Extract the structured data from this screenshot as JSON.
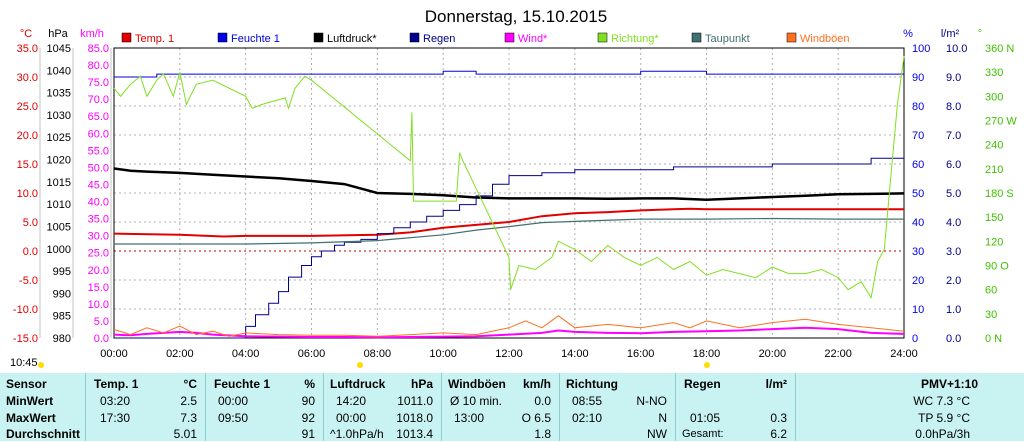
{
  "chart_data": {
    "type": "line",
    "title": "Donnerstag, 15.10.2015",
    "x_ticks": [
      "00:00",
      "02:00",
      "04:00",
      "06:00",
      "08:00",
      "10:00",
      "12:00",
      "14:00",
      "16:00",
      "18:00",
      "20:00",
      "22:00",
      "24:00"
    ],
    "x_range_hours": [
      0,
      24
    ],
    "grid": true,
    "legend": [
      {
        "name": "Temp. 1",
        "color": "#e00000"
      },
      {
        "name": "Feuchte 1",
        "color": "#0000e0"
      },
      {
        "name": "Luftdruck*",
        "color": "#000000"
      },
      {
        "name": "Regen",
        "color": "#00008a"
      },
      {
        "name": "Wind*",
        "color": "#ff00ff"
      },
      {
        "name": "Richtung*",
        "color": "#80e020"
      },
      {
        "name": "Taupunkt",
        "color": "#407070"
      },
      {
        "name": "Windböen",
        "color": "#ff7020"
      }
    ],
    "axes": {
      "temp": {
        "unit": "°C",
        "color": "#e00000",
        "min": -15,
        "max": 35,
        "ticks": [
          "35.0",
          "30.0",
          "25.0",
          "20.0",
          "15.0",
          "10.0",
          "5.0",
          "0.0",
          "-5.0",
          "-10.0",
          "-15.0"
        ]
      },
      "pressure": {
        "unit": "hPa",
        "color": "#000000",
        "min": 980,
        "max": 1045,
        "ticks": [
          "1045",
          "1040",
          "1035",
          "1030",
          "1025",
          "1020",
          "1015",
          "1010",
          "1005",
          "1000",
          "995",
          "990",
          "985",
          "980"
        ]
      },
      "wind": {
        "unit": "km/h",
        "color": "#ff00ff",
        "min": 0,
        "max": 85,
        "ticks": [
          "85.0",
          "80.0",
          "75.0",
          "70.0",
          "65.0",
          "60.0",
          "55.0",
          "50.0",
          "45.0",
          "40.0",
          "35.0",
          "30.0",
          "25.0",
          "20.0",
          "15.0",
          "10.0",
          "5.0",
          "0.0"
        ]
      },
      "humidity": {
        "unit": "%",
        "color": "#0000e0",
        "min": 0,
        "max": 100,
        "ticks": [
          "100",
          "90",
          "80",
          "70",
          "60",
          "50",
          "40",
          "30",
          "20",
          "10",
          "0"
        ]
      },
      "rain": {
        "unit": "l/m²",
        "color": "#00008a",
        "min": 0,
        "max": 10,
        "ticks": [
          "10.0",
          "9.0",
          "8.0",
          "7.0",
          "6.0",
          "5.0",
          "4.0",
          "3.0",
          "2.0",
          "1.0",
          "0.0"
        ]
      },
      "direction": {
        "unit": "°",
        "color": "#40c000",
        "min": 0,
        "max": 360,
        "ticks": [
          "360 N",
          "330",
          "300",
          "270 W",
          "240",
          "210",
          "180 S",
          "150",
          "120",
          "90 O",
          "60",
          "30",
          "0 N"
        ]
      }
    },
    "series": [
      {
        "name": "Temp. 1",
        "axis": "temp",
        "x": [
          0,
          2,
          3.33,
          4,
          6,
          8,
          9,
          10,
          11,
          12,
          13,
          14,
          15,
          16,
          17,
          17.5,
          18,
          20,
          22,
          24
        ],
        "y": [
          3.0,
          2.8,
          2.5,
          2.6,
          2.6,
          2.8,
          3.2,
          4.0,
          4.5,
          5.0,
          6.0,
          6.5,
          6.7,
          7.0,
          7.2,
          7.3,
          7.2,
          7.2,
          7.2,
          7.2
        ]
      },
      {
        "name": "Feuchte 1",
        "axis": "humidity",
        "x": [
          0,
          1.2,
          1.3,
          4,
          4.5,
          6,
          8,
          9,
          10,
          11,
          12,
          14,
          16,
          18,
          20,
          22,
          23,
          24
        ],
        "y": [
          90,
          90,
          91,
          91,
          91,
          91,
          91,
          91,
          92,
          91,
          91,
          91,
          92,
          91,
          91,
          91,
          91,
          91
        ]
      },
      {
        "name": "Luftdruck*",
        "axis": "pressure",
        "x": [
          0,
          0.5,
          1,
          2,
          3,
          4,
          5,
          6,
          7,
          8,
          9,
          10,
          11,
          12,
          13,
          14,
          15,
          16,
          17,
          18,
          19,
          20,
          21,
          22,
          23,
          24
        ],
        "y": [
          1018,
          1017.5,
          1017.3,
          1017,
          1016.6,
          1016.2,
          1015.8,
          1015.2,
          1014.5,
          1012.5,
          1012.3,
          1012,
          1011.5,
          1011.3,
          1011.3,
          1011.3,
          1011.2,
          1011.3,
          1011.3,
          1011.0,
          1011.3,
          1011.6,
          1011.9,
          1012.2,
          1012.3,
          1012.4
        ]
      },
      {
        "name": "Regen",
        "axis": "rain",
        "x": [
          0,
          3.6,
          4.0,
          4.3,
          4.7,
          5.0,
          5.3,
          5.7,
          6.0,
          6.3,
          6.7,
          7.0,
          7.5,
          8.0,
          8.5,
          9.0,
          9.5,
          10.0,
          10.5,
          11.0,
          11.5,
          12.0,
          13.0,
          14.0,
          15.0,
          16.0,
          17.0,
          18.0,
          19.0,
          20.0,
          21.0,
          22.0,
          22.5,
          23.0,
          24.0
        ],
        "y": [
          0,
          0,
          0.4,
          0.8,
          1.2,
          1.6,
          2.1,
          2.5,
          2.8,
          3.0,
          3.2,
          3.3,
          3.4,
          3.6,
          3.8,
          4.0,
          4.2,
          4.4,
          4.6,
          4.9,
          5.3,
          5.6,
          5.7,
          5.8,
          5.8,
          5.8,
          5.9,
          5.9,
          5.9,
          6.0,
          6.0,
          6.0,
          6.0,
          6.2,
          6.2
        ]
      },
      {
        "name": "Taupunkt",
        "axis": "temp",
        "x": [
          0,
          2,
          4,
          6,
          8,
          10,
          11,
          12,
          13,
          14,
          16,
          18,
          20,
          22,
          24
        ],
        "y": [
          1.2,
          1.2,
          1.2,
          1.4,
          1.8,
          2.8,
          3.6,
          4.2,
          4.9,
          5.1,
          5.5,
          5.5,
          5.6,
          5.5,
          5.5
        ]
      },
      {
        "name": "Wind*",
        "axis": "wind",
        "x": [
          0,
          0.5,
          1,
          1.5,
          2,
          2.5,
          3,
          4,
          5,
          6,
          7,
          8,
          9,
          10,
          11,
          12,
          13,
          13.5,
          14,
          15,
          16,
          17,
          18,
          19,
          20,
          21,
          22,
          23,
          24
        ],
        "y": [
          1.0,
          0.8,
          1.2,
          1.5,
          1.8,
          1.5,
          1.0,
          0.5,
          0.4,
          0.3,
          0.3,
          0.2,
          0.3,
          0.4,
          0.5,
          1.0,
          1.5,
          2.2,
          1.8,
          1.5,
          1.4,
          1.8,
          2.0,
          2.2,
          2.6,
          3.0,
          2.6,
          1.5,
          1.2
        ]
      },
      {
        "name": "Windböen",
        "axis": "wind",
        "x": [
          0,
          0.5,
          1,
          1.5,
          2,
          2.5,
          3,
          3.5,
          4,
          5,
          6,
          7,
          8,
          9,
          10,
          11,
          12,
          12.5,
          13,
          13.5,
          14,
          15,
          16,
          17,
          17.5,
          18,
          19,
          20,
          21,
          22,
          23,
          24
        ],
        "y": [
          2.5,
          1.0,
          3.0,
          1.5,
          3.5,
          1.0,
          2.0,
          0.5,
          1.5,
          1.0,
          0.8,
          0.8,
          0.5,
          1.0,
          1.5,
          1.0,
          3.0,
          5.0,
          3.0,
          6.5,
          3.0,
          4.0,
          3.0,
          4.5,
          3.0,
          5.0,
          3.0,
          4.5,
          5.5,
          4.0,
          3.0,
          2.0
        ]
      },
      {
        "name": "Richtung*",
        "axis": "direction",
        "x": [
          0,
          0.2,
          0.5,
          0.8,
          1.0,
          1.3,
          1.5,
          1.8,
          2.0,
          2.2,
          2.5,
          3.0,
          4.0,
          4.2,
          4.5,
          5.2,
          5.3,
          5.5,
          5.8,
          6.0,
          9.0,
          9.05,
          9.1,
          10.4,
          10.5,
          10.6,
          12.0,
          12.05,
          12.3,
          12.8,
          13.3,
          13.5,
          14.0,
          14.5,
          15.0,
          15.5,
          16.0,
          16.5,
          17.0,
          17.5,
          18.0,
          18.5,
          19.0,
          19.5,
          20.0,
          20.5,
          21.0,
          21.5,
          22.0,
          22.3,
          22.7,
          23.0,
          23.2,
          23.4,
          23.6,
          23.8,
          24.0
        ],
        "y": [
          310,
          300,
          315,
          325,
          300,
          320,
          328,
          300,
          330,
          290,
          315,
          320,
          300,
          285,
          290,
          298,
          285,
          310,
          325,
          320,
          220,
          280,
          170,
          170,
          230,
          220,
          100,
          60,
          90,
          85,
          100,
          120,
          110,
          95,
          115,
          100,
          90,
          100,
          85,
          95,
          78,
          85,
          80,
          75,
          88,
          80,
          80,
          85,
          75,
          60,
          70,
          50,
          95,
          110,
          200,
          290,
          350
        ]
      }
    ]
  },
  "header_labels": {
    "hpa": "hPa",
    "kmh": "km/h",
    "pct": "%",
    "lm2": "l/m²",
    "deg": "°",
    "degc": "°C"
  },
  "time_now": "10:45",
  "summary_table": {
    "sensor_col": {
      "header": "Sensor",
      "rows": [
        "MinWert",
        "MaxWert",
        "Durchschnitt"
      ]
    },
    "temp": {
      "header": "Temp. 1",
      "unit": "°C",
      "rows": [
        [
          "03:20",
          "2.5"
        ],
        [
          "17:30",
          "7.3"
        ],
        [
          "",
          "5.01"
        ]
      ]
    },
    "feuchte": {
      "header": "Feuchte 1",
      "unit": "%",
      "rows": [
        [
          "00:00",
          "90"
        ],
        [
          "09:50",
          "92"
        ],
        [
          "",
          "91"
        ]
      ]
    },
    "luftdruck": {
      "header": "Luftdruck",
      "unit": "hPa",
      "rows": [
        [
          "14:20",
          "1011.0"
        ],
        [
          "00:00",
          "1018.0"
        ],
        [
          "^1.0hPa/h",
          "1013.4"
        ]
      ]
    },
    "windboeen": {
      "header": "Windböen",
      "unit": "km/h",
      "rows": [
        [
          "Ø 10 min.",
          "0.0"
        ],
        [
          "13:00",
          "O 6.5"
        ],
        [
          "",
          "1.8"
        ]
      ]
    },
    "richtung": {
      "header": "Richtung",
      "rows": [
        [
          "08:55",
          "N-NO"
        ],
        [
          "02:10",
          "N"
        ],
        [
          "",
          "NW"
        ]
      ]
    },
    "regen": {
      "header": "Regen",
      "unit": "l/m²",
      "rows": [
        [
          "",
          ""
        ],
        [
          "01:05",
          "0.3"
        ],
        [
          "Gesamt:",
          "6.2"
        ]
      ]
    },
    "pmv": {
      "header": "PMV+1:10",
      "rows": [
        "WC 7.3 °C",
        "TP 5.9 °C",
        "0.0hPa/3h"
      ]
    }
  }
}
